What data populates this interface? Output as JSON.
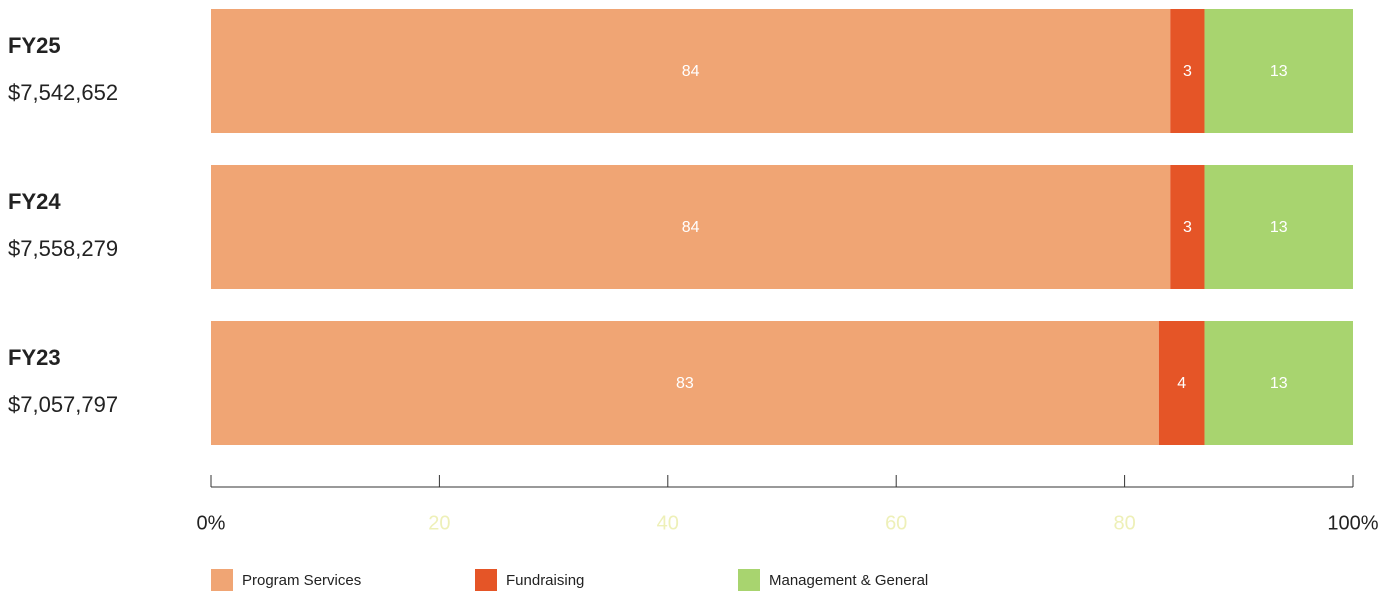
{
  "chart_data": {
    "type": "stacked-bar-horizontal",
    "categories": [
      "FY25",
      "FY24",
      "FY23"
    ],
    "category_totals": [
      "$7,542,652",
      "$7,558,279",
      "$7,057,797"
    ],
    "series": [
      {
        "name": "Program Services",
        "color": "#f0a574",
        "values": [
          84,
          84,
          83
        ]
      },
      {
        "name": "Fundraising",
        "color": "#e55527",
        "values": [
          3,
          3,
          4
        ]
      },
      {
        "name": "Management & General",
        "color": "#a8d46f",
        "values": [
          13,
          13,
          13
        ]
      }
    ],
    "xlim": [
      0,
      100
    ],
    "xticks": [
      {
        "value": 0,
        "label": "0%"
      },
      20,
      40,
      60,
      80,
      {
        "value": 100,
        "label": "100%"
      }
    ],
    "legend": "bottom"
  }
}
